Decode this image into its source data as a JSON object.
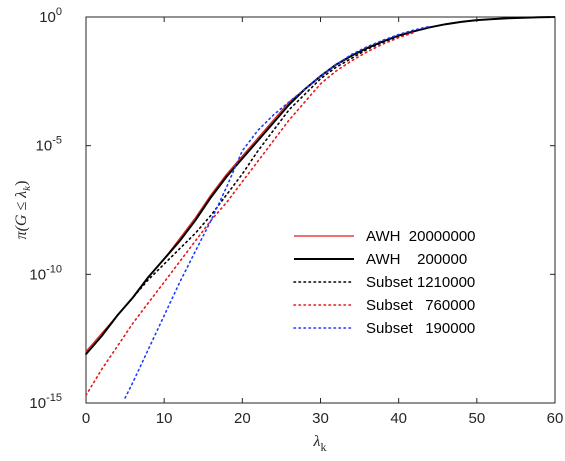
{
  "chart_data": {
    "type": "line",
    "title": "",
    "xlabel": "λ",
    "xlabel_sub": "k",
    "ylabel": "π(G ≤ λ",
    "ylabel_sub": "k",
    "ylabel_close": ")",
    "yscale": "log",
    "xlim": [
      0,
      60
    ],
    "ylim_exponent": [
      -15,
      0
    ],
    "x_ticks": [
      0,
      10,
      20,
      30,
      40,
      50,
      60
    ],
    "y_ticks": [
      {
        "base": "10",
        "exp": "-15",
        "value_exp": -15
      },
      {
        "base": "10",
        "exp": "-10",
        "value_exp": -10
      },
      {
        "base": "10",
        "exp": "-5",
        "value_exp": -5
      },
      {
        "base": "10",
        "exp": "0",
        "value_exp": 0
      }
    ],
    "grid": false,
    "legend_position": "right-center",
    "series": [
      {
        "name": "AWH  20000000",
        "color": "#e41a1c",
        "style": "solid",
        "width": 1.2,
        "x": [
          0,
          2,
          4,
          6,
          8,
          10,
          12,
          14,
          16,
          18,
          20,
          22,
          24,
          26,
          28,
          30,
          32,
          34,
          36,
          38,
          40,
          42,
          44,
          46,
          48,
          50,
          52,
          54,
          56,
          58,
          60
        ],
        "log10y": [
          -13.0,
          -12.3,
          -11.6,
          -10.9,
          -10.1,
          -9.4,
          -8.6,
          -7.8,
          -6.9,
          -6.1,
          -5.4,
          -4.7,
          -4.0,
          -3.3,
          -2.8,
          -2.3,
          -1.85,
          -1.5,
          -1.2,
          -0.95,
          -0.72,
          -0.55,
          -0.4,
          -0.28,
          -0.19,
          -0.12,
          -0.08,
          -0.05,
          -0.03,
          -0.01,
          0.0
        ]
      },
      {
        "name": "AWH    200000",
        "color": "#000000",
        "style": "solid",
        "width": 2.0,
        "x": [
          0,
          2,
          4,
          6,
          8,
          10,
          12,
          14,
          16,
          18,
          20,
          22,
          24,
          26,
          28,
          30,
          32,
          34,
          36,
          38,
          40,
          42,
          44,
          46,
          48,
          50,
          52,
          54,
          56,
          58,
          60
        ],
        "log10y": [
          -13.1,
          -12.4,
          -11.6,
          -10.9,
          -10.1,
          -9.4,
          -8.7,
          -7.9,
          -7.0,
          -6.2,
          -5.5,
          -4.8,
          -4.1,
          -3.4,
          -2.8,
          -2.3,
          -1.85,
          -1.5,
          -1.2,
          -0.95,
          -0.72,
          -0.55,
          -0.4,
          -0.28,
          -0.19,
          -0.12,
          -0.08,
          -0.05,
          -0.03,
          -0.01,
          0.0
        ]
      },
      {
        "name": "Subset 1210000",
        "color": "#000000",
        "style": "dotted",
        "width": 1.6,
        "x": [
          0,
          2,
          4,
          6,
          8,
          10,
          12,
          14,
          16,
          18,
          20,
          22,
          24,
          26,
          28,
          30,
          32,
          34,
          36,
          38,
          40,
          42
        ],
        "log10y": [
          -13.1,
          -12.4,
          -11.6,
          -10.9,
          -10.2,
          -9.6,
          -9.0,
          -8.4,
          -7.7,
          -6.9,
          -6.1,
          -5.2,
          -4.4,
          -3.6,
          -3.0,
          -2.4,
          -1.95,
          -1.6,
          -1.25,
          -0.98,
          -0.75,
          -0.55
        ]
      },
      {
        "name": "Subset   760000",
        "color": "#e41a1c",
        "style": "dotted",
        "width": 1.6,
        "x": [
          0,
          2,
          4,
          6,
          8,
          10,
          12,
          14,
          16,
          18,
          20,
          22,
          24,
          26,
          28,
          30,
          32,
          34,
          36,
          38,
          40,
          42
        ],
        "log10y": [
          -14.7,
          -13.7,
          -12.8,
          -11.9,
          -11.1,
          -10.3,
          -9.5,
          -8.7,
          -7.9,
          -7.2,
          -6.4,
          -5.6,
          -4.8,
          -4.0,
          -3.3,
          -2.6,
          -2.1,
          -1.7,
          -1.35,
          -1.05,
          -0.8,
          -0.6
        ]
      },
      {
        "name": "Subset   190000",
        "color": "#1f3cff",
        "style": "dotted",
        "width": 1.6,
        "x": [
          5,
          6,
          8,
          10,
          12,
          14,
          16,
          18,
          20,
          22,
          24,
          26,
          28,
          30,
          32,
          34,
          36,
          38,
          40,
          42,
          44
        ],
        "log10y": [
          -14.8,
          -14.2,
          -12.9,
          -11.6,
          -10.3,
          -9.1,
          -7.9,
          -6.6,
          -5.2,
          -4.4,
          -3.8,
          -3.3,
          -2.8,
          -2.3,
          -1.85,
          -1.45,
          -1.15,
          -0.9,
          -0.68,
          -0.5,
          -0.36
        ]
      }
    ]
  }
}
